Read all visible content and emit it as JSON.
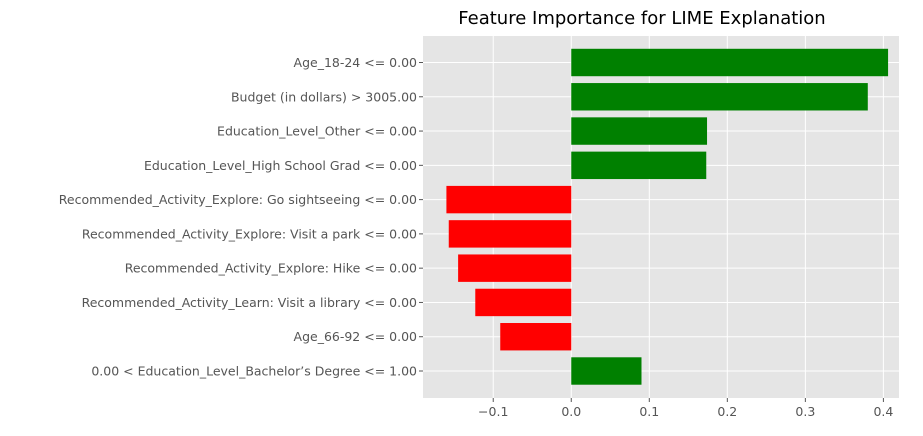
{
  "chart_data": {
    "type": "bar",
    "orientation": "horizontal",
    "title": "Feature Importance for LIME Explanation",
    "xlabel": "",
    "ylabel": "",
    "xlim": [
      -0.19,
      0.42
    ],
    "grid": true,
    "x_ticks": [
      -0.1,
      0.0,
      0.1,
      0.2,
      0.3,
      0.4
    ],
    "x_tick_labels": [
      "−0.1",
      "0.0",
      "0.1",
      "0.2",
      "0.3",
      "0.4"
    ],
    "positive_color": "#008000",
    "negative_color": "#ff0000",
    "background_color": "#e5e5e5",
    "categories": [
      "Age_18-24 <= 0.00",
      "Budget (in dollars) > 3005.00",
      "Education_Level_Other <= 0.00",
      "Education_Level_High School Grad <= 0.00",
      "Recommended_Activity_Explore: Go sightseeing <= 0.00",
      "Recommended_Activity_Explore: Visit a park <= 0.00",
      "Recommended_Activity_Explore: Hike <= 0.00",
      "Recommended_Activity_Learn: Visit a library <= 0.00",
      "Age_66-92 <= 0.00",
      "0.00 < Education_Level_Bachelor’s Degree <= 1.00"
    ],
    "values": [
      0.406,
      0.38,
      0.174,
      0.173,
      -0.16,
      -0.157,
      -0.145,
      -0.123,
      -0.091,
      0.09
    ]
  }
}
